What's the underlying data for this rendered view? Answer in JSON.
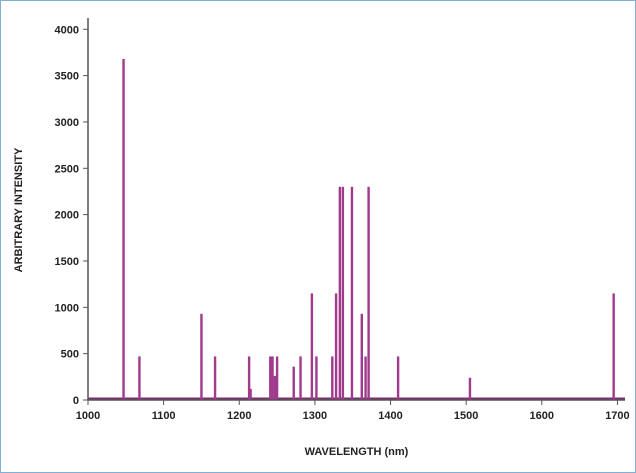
{
  "chart_data": {
    "type": "bar",
    "title": "",
    "xlabel": "WAVELENGTH (nm)",
    "ylabel": "ARBITRARY INTENSITY",
    "xlim": [
      1000,
      1710
    ],
    "ylim": [
      0,
      4100
    ],
    "x_ticks": [
      1000,
      1100,
      1200,
      1300,
      1400,
      1500,
      1600,
      1700
    ],
    "y_ticks": [
      0,
      500,
      1000,
      1500,
      2000,
      2500,
      3000,
      3500,
      4000
    ],
    "grid": false,
    "legend": "none",
    "bar_color": "#a03a8c",
    "baseline_color": "#7a2f6e",
    "series": [
      {
        "x": [
          1047,
          1068,
          1150,
          1168,
          1213,
          1215,
          1241,
          1244,
          1247,
          1250,
          1272,
          1281,
          1296,
          1302,
          1323,
          1328,
          1333,
          1337,
          1349,
          1362,
          1367,
          1371,
          1410,
          1505,
          1695
        ],
        "values": [
          3680,
          470,
          930,
          470,
          470,
          120,
          470,
          470,
          260,
          470,
          360,
          470,
          1150,
          470,
          470,
          1150,
          2300,
          2300,
          2300,
          930,
          470,
          2300,
          470,
          240,
          1150
        ]
      }
    ]
  }
}
